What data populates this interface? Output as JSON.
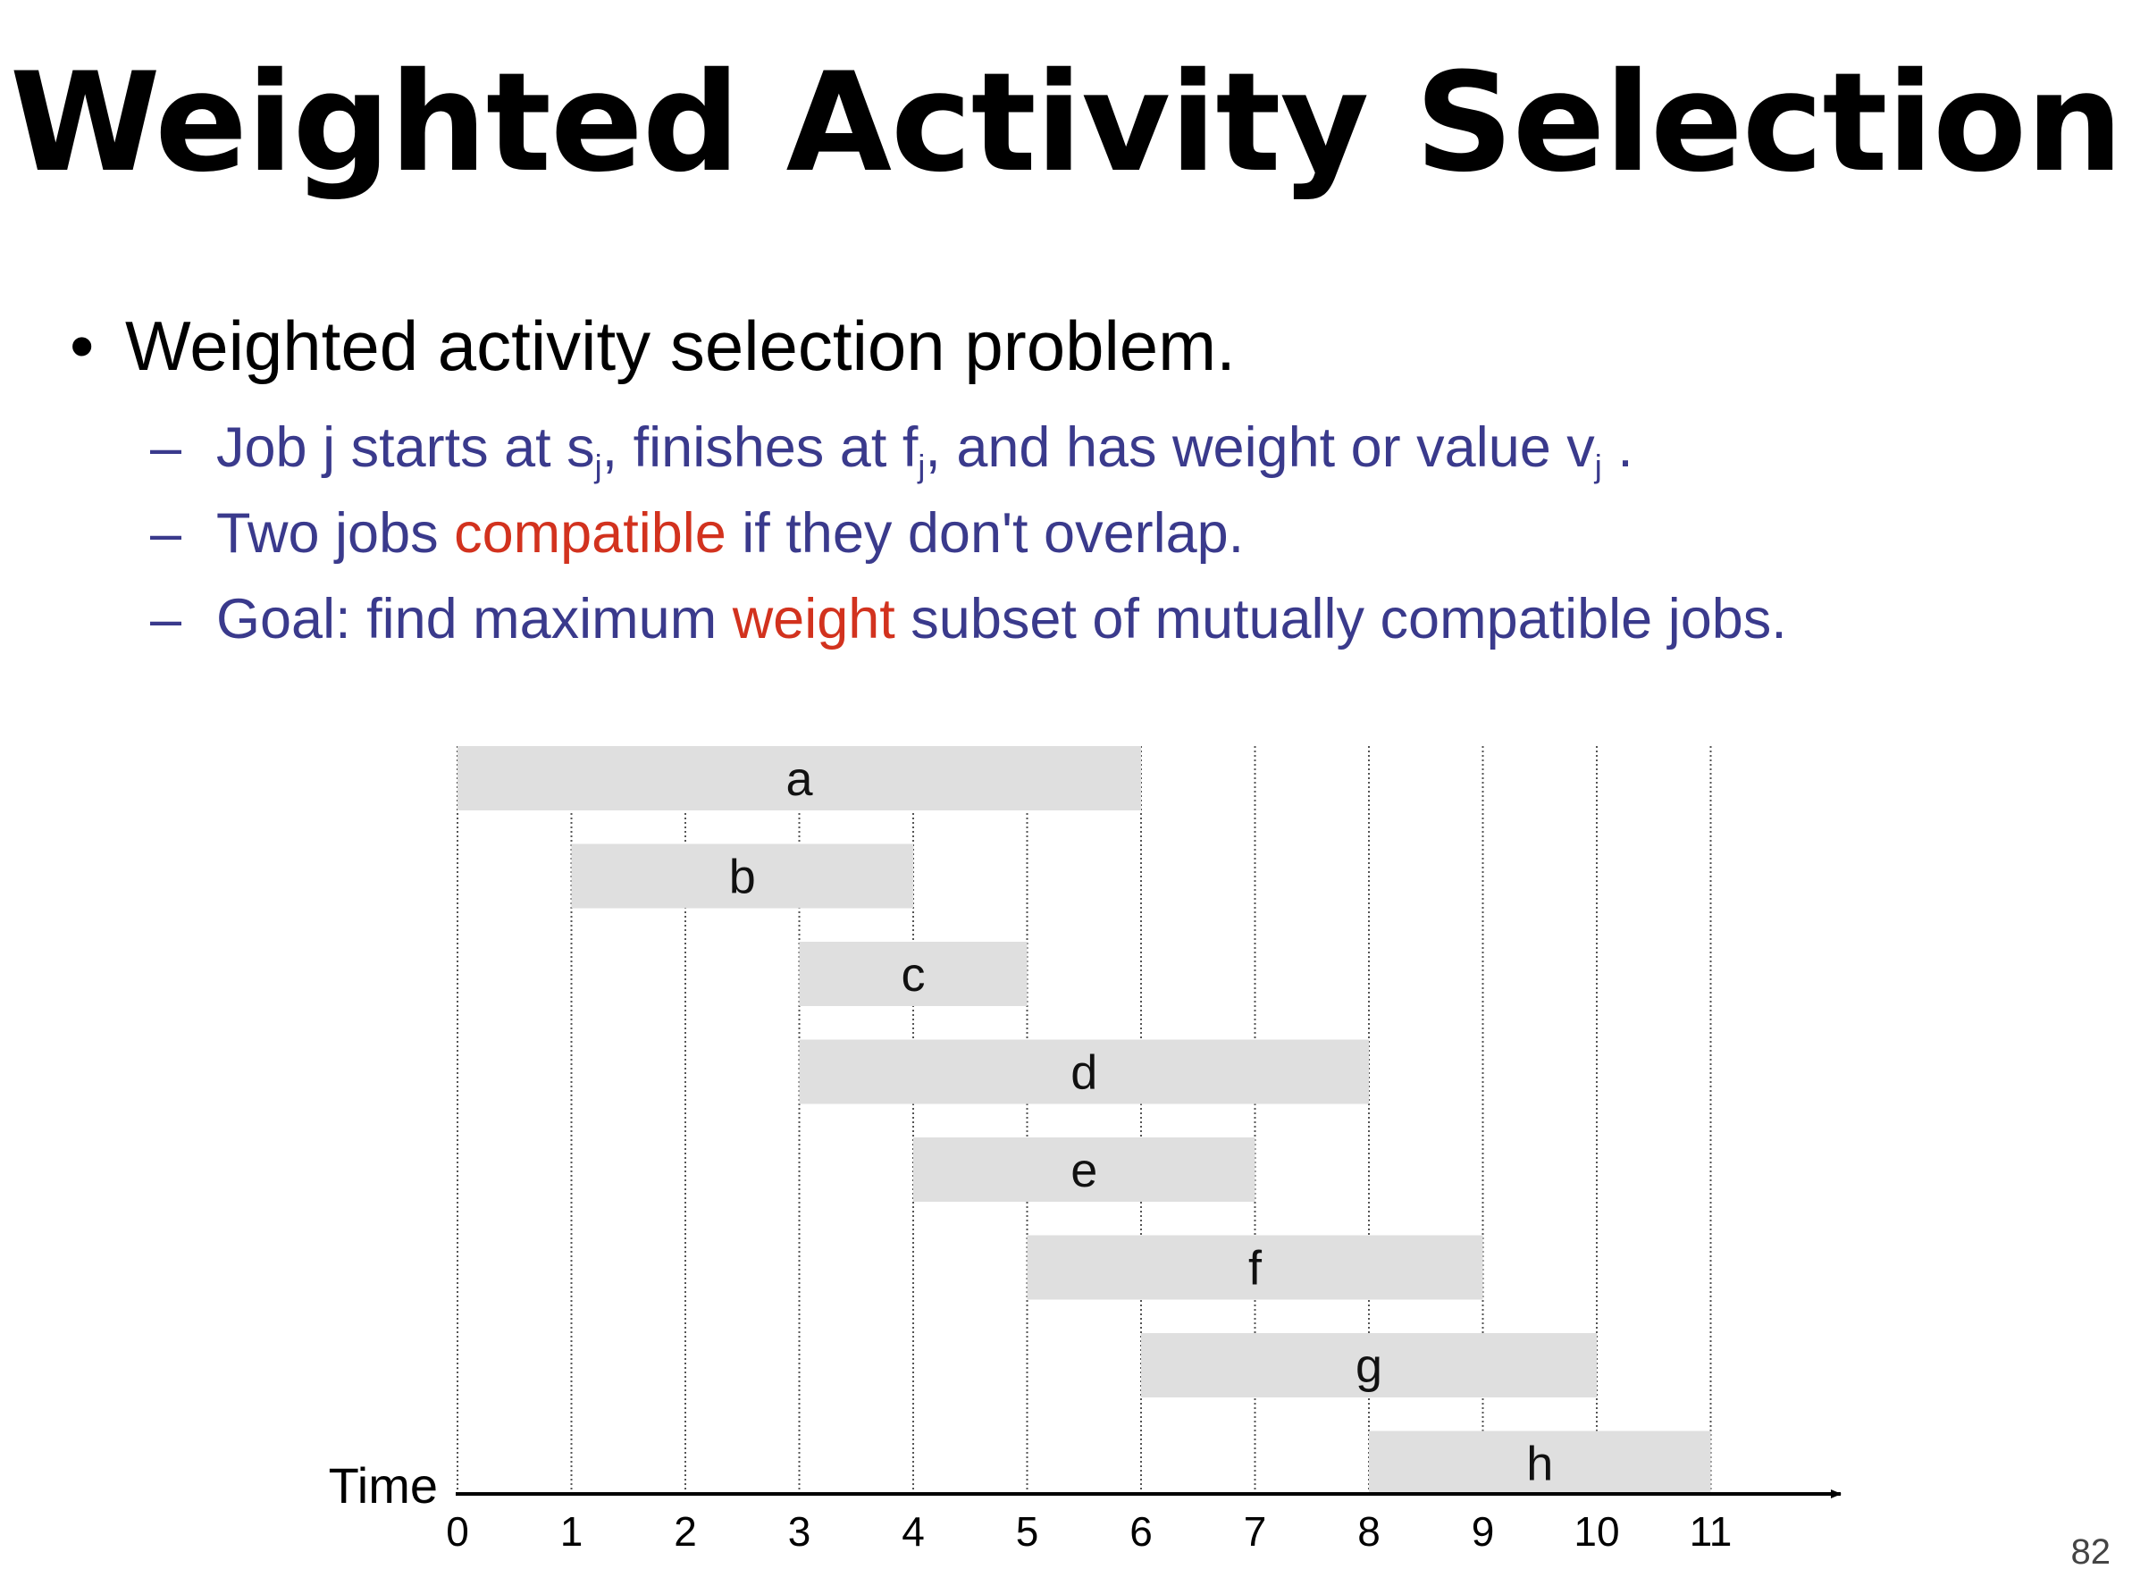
{
  "slide": {
    "title": "Weighted Activity Selection",
    "bullet": "Weighted activity selection problem.",
    "sub1": {
      "t1": "Job j starts at s",
      "s1": "j",
      "t2": ", finishes at f",
      "s2": "j",
      "t3": ", and has weight or value v",
      "s3": "j",
      "t4": " ."
    },
    "sub2": {
      "t1": "Two jobs ",
      "hl": "compatible",
      "t2": " if they don't overlap."
    },
    "sub3": {
      "t1": "Goal: find maximum ",
      "hl": "weight",
      "t2": " subset of mutually compatible jobs."
    },
    "page_number": "82",
    "colors": {
      "sub_text": "#3a3a8c",
      "highlight": "#d2321e",
      "bar": "#dfdfdf"
    }
  },
  "chart_data": {
    "type": "bar",
    "xlabel": "Time",
    "xlim": [
      0,
      11
    ],
    "ticks": [
      "0",
      "1",
      "2",
      "3",
      "4",
      "5",
      "6",
      "7",
      "8",
      "9",
      "10",
      "11"
    ],
    "jobs": [
      {
        "name": "a",
        "start": 0,
        "finish": 6
      },
      {
        "name": "b",
        "start": 1,
        "finish": 4
      },
      {
        "name": "c",
        "start": 3,
        "finish": 5
      },
      {
        "name": "d",
        "start": 3,
        "finish": 8
      },
      {
        "name": "e",
        "start": 4,
        "finish": 7
      },
      {
        "name": "f",
        "start": 5,
        "finish": 9
      },
      {
        "name": "g",
        "start": 6,
        "finish": 10
      },
      {
        "name": "h",
        "start": 8,
        "finish": 11
      }
    ]
  }
}
